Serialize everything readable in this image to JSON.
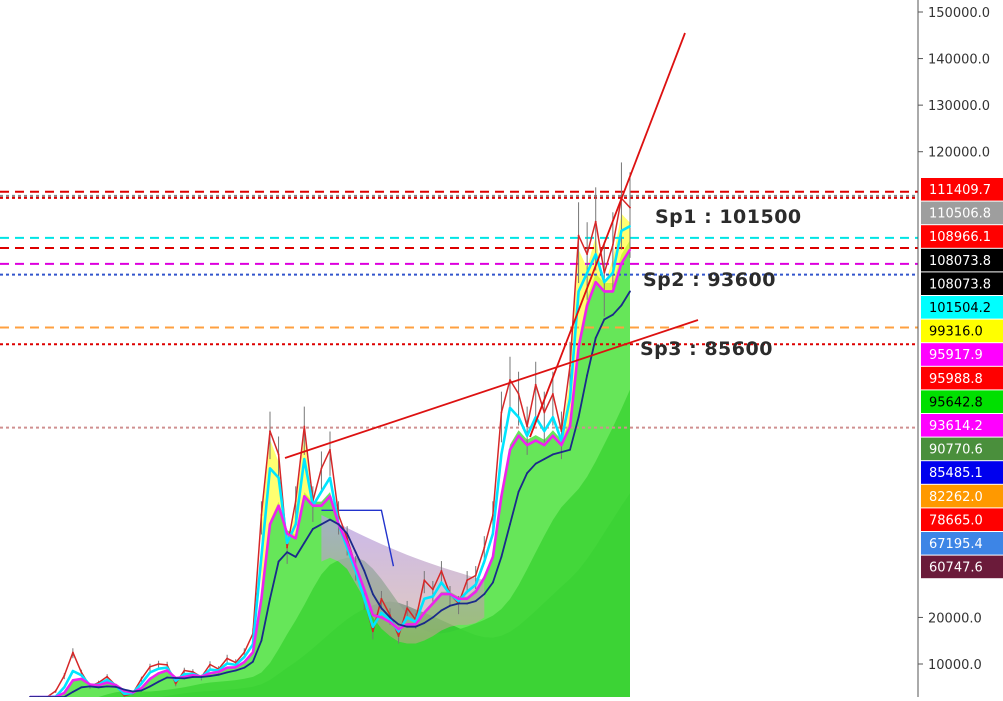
{
  "chart_data": {
    "type": "line",
    "title": "",
    "xlabel": "",
    "ylabel": "",
    "ylim": [
      0,
      151500
    ],
    "y_axis_side": "right",
    "y_ticks": [
      {
        "value": 150000,
        "label": "150000.0"
      },
      {
        "value": 140000,
        "label": "140000.0"
      },
      {
        "value": 130000,
        "label": "130000.0"
      },
      {
        "value": 120000,
        "label": "120000.0"
      },
      {
        "value": 20000,
        "label": "20000.0"
      },
      {
        "value": 10000,
        "label": "10000.0"
      }
    ],
    "price_badges": [
      {
        "label": "111409.7",
        "value": 111409.7,
        "bg": "#ff0000",
        "fg": "#ffffff"
      },
      {
        "label": "110506.8",
        "value": 110506.8,
        "bg": "#9e9e9e",
        "fg": "#ffffff"
      },
      {
        "label": "108966.1",
        "value": 108966.1,
        "bg": "#ff0000",
        "fg": "#ffffff"
      },
      {
        "label": "108073.8",
        "value": 108073.8,
        "bg": "#000000",
        "fg": "#ffffff"
      },
      {
        "label": "108073.8",
        "value": 108073.8,
        "bg": "#000000",
        "fg": "#ffffff"
      },
      {
        "label": "101504.2",
        "value": 101504.2,
        "bg": "#00ffff",
        "fg": "#000000"
      },
      {
        "label": "99316.0",
        "value": 99316.0,
        "bg": "#ffff00",
        "fg": "#000000"
      },
      {
        "label": "95917.9",
        "value": 95917.9,
        "bg": "#ff00ff",
        "fg": "#ffffff"
      },
      {
        "label": "95988.8",
        "value": 95988.8,
        "bg": "#ff0000",
        "fg": "#ffffff"
      },
      {
        "label": "95642.8",
        "value": 95642.8,
        "bg": "#00e000",
        "fg": "#000000"
      },
      {
        "label": "93614.2",
        "value": 93614.2,
        "bg": "#ff00ff",
        "fg": "#ffffff"
      },
      {
        "label": "90770.6",
        "value": 90770.6,
        "bg": "#4a8f3c",
        "fg": "#ffffff"
      },
      {
        "label": "85485.1",
        "value": 85485.1,
        "bg": "#0000ee",
        "fg": "#ffffff"
      },
      {
        "label": "82262.0",
        "value": 82262.0,
        "bg": "#ff9900",
        "fg": "#ffffff"
      },
      {
        "label": "78665.0",
        "value": 78665.0,
        "bg": "#ff0000",
        "fg": "#ffffff"
      },
      {
        "label": "67195.4",
        "value": 67195.4,
        "bg": "#3d85e6",
        "fg": "#ffffff"
      },
      {
        "label": "60747.6",
        "value": 60747.6,
        "bg": "#6b1b3a",
        "fg": "#ffffff"
      }
    ],
    "horizontal_levels": [
      {
        "value": 111409.7,
        "color": "#dd0000",
        "style": "dashed"
      },
      {
        "value": 110506.8,
        "color": "#888888",
        "style": "dotted"
      },
      {
        "value": 110100,
        "color": "#dd0000",
        "style": "dotted"
      },
      {
        "value": 101504.2,
        "color": "#00e5e5",
        "style": "dashed"
      },
      {
        "value": 99316.0,
        "color": "#dd0000",
        "style": "dashed"
      },
      {
        "value": 95917.9,
        "color": "#dd00dd",
        "style": "dashed"
      },
      {
        "value": 93614.2,
        "color": "#3355cc",
        "style": "dotted"
      },
      {
        "value": 82262.0,
        "color": "#ffa040",
        "style": "dashed"
      },
      {
        "value": 78665.0,
        "color": "#dd0000",
        "style": "dotted"
      },
      {
        "value": 60747.6,
        "color": "#d09090",
        "style": "dotted"
      }
    ],
    "annotations": [
      {
        "text": "Sp1 : 101500",
        "value": 101500
      },
      {
        "text": "Sp2 : 93600",
        "value": 93600
      },
      {
        "text": "Sp3 : 85600",
        "value": 85600
      }
    ],
    "series": [
      {
        "color": "#d62728",
        "values": [
          1200,
          1800,
          2600,
          4200,
          7500,
          12500,
          8200,
          5200,
          6000,
          7300,
          5400,
          3200,
          3700,
          6800,
          9400,
          10000,
          9800,
          5800,
          8600,
          8300,
          7200,
          9900,
          8900,
          11200,
          10300,
          12500,
          16500,
          42000,
          60000,
          55000,
          35000,
          45000,
          61000,
          45000,
          52000,
          56000,
          42000,
          37000,
          31000,
          24000,
          17000,
          24000,
          20500,
          16000,
          22000,
          19500,
          28000,
          26000,
          30000,
          25000,
          23000,
          28000,
          29000,
          35000,
          42000,
          64000,
          71000,
          68000,
          61000,
          70000,
          64000,
          68000,
          60000,
          74000,
          102000,
          98000,
          105000,
          94000,
          100000,
          110000,
          108000
        ]
      },
      {
        "color": "#00e5ff",
        "values": [
          800,
          1200,
          1800,
          3000,
          5000,
          8500,
          7600,
          5400,
          5600,
          6600,
          5400,
          3600,
          3800,
          5800,
          8200,
          9000,
          9200,
          6400,
          7800,
          7900,
          7200,
          8800,
          8600,
          10100,
          9800,
          11500,
          14200,
          33000,
          52000,
          50000,
          36000,
          40000,
          54000,
          44000,
          47000,
          50000,
          40000,
          35000,
          30000,
          24000,
          18000,
          21000,
          19500,
          17000,
          20000,
          19000,
          24000,
          24500,
          27500,
          25000,
          23500,
          25500,
          27000,
          32000,
          38000,
          55000,
          65000,
          63000,
          59000,
          63000,
          60000,
          63000,
          58000,
          67000,
          90000,
          94000,
          98000,
          92000,
          94000,
          103000,
          104000
        ]
      },
      {
        "color": "#ee22ee",
        "values": [
          500,
          800,
          1300,
          2200,
          3800,
          6500,
          6800,
          5600,
          5400,
          6000,
          5500,
          4200,
          3900,
          4800,
          6800,
          8000,
          8600,
          7000,
          7200,
          7600,
          7300,
          8000,
          8300,
          9200,
          9300,
          10400,
          12500,
          24000,
          40000,
          44000,
          38000,
          37000,
          46000,
          44000,
          44000,
          46000,
          40000,
          36000,
          31000,
          26000,
          20500,
          20000,
          19000,
          17500,
          18500,
          18500,
          21000,
          23000,
          25000,
          25000,
          24000,
          24000,
          25500,
          28500,
          33000,
          46000,
          56000,
          59000,
          57000,
          58000,
          57000,
          59000,
          57000,
          61000,
          78000,
          87000,
          92000,
          90000,
          90000,
          96000,
          99000
        ]
      },
      {
        "color": "#1a2a8a",
        "values": [
          300,
          500,
          800,
          1400,
          2400,
          4000,
          5000,
          5200,
          5000,
          5200,
          5100,
          4500,
          4100,
          4300,
          5200,
          6200,
          7100,
          7000,
          6900,
          7200,
          7200,
          7400,
          7700,
          8200,
          8600,
          9200,
          10500,
          15000,
          24000,
          32000,
          34000,
          33000,
          36000,
          39000,
          40000,
          41000,
          40000,
          38000,
          34000,
          30000,
          25000,
          22000,
          20000,
          18500,
          18000,
          18000,
          18800,
          20000,
          21500,
          22500,
          23000,
          23000,
          23500,
          25000,
          27500,
          33000,
          40000,
          47000,
          51000,
          53000,
          54000,
          55000,
          55500,
          56000,
          63000,
          72000,
          80000,
          84000,
          85000,
          87000,
          90000
        ]
      }
    ]
  }
}
